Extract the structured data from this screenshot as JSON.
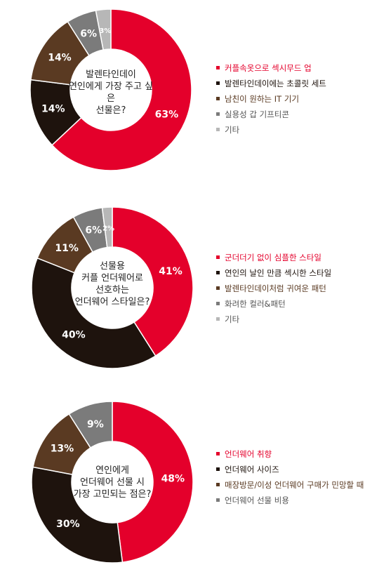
{
  "chart_data": [
    {
      "type": "pie",
      "title_lines": [
        "발렌타인데이",
        "연인에게 가장 주고 싶은",
        "선물은?"
      ],
      "slices": [
        {
          "label": "커플속옷으로 섹시무드 업",
          "value": 63,
          "value_label": "63%",
          "color": "#e4002b"
        },
        {
          "label": "발렌타인데이에는 초콜릿 세트",
          "value": 14,
          "value_label": "14%",
          "color": "#1e130d"
        },
        {
          "label": "남친이 원하는 IT 기기",
          "value": 14,
          "value_label": "14%",
          "color": "#5a3a22"
        },
        {
          "label": "실용성 갑 기프티콘",
          "value": 6,
          "value_label": "6%",
          "color": "#7b7b7b"
        },
        {
          "label": "기타",
          "value": 3,
          "value_label": "3%",
          "color": "#b7b7b7"
        }
      ]
    },
    {
      "type": "pie",
      "title_lines": [
        "선물용",
        "커플 언더웨어로",
        "선호하는",
        "언더웨어 스타일은?"
      ],
      "slices": [
        {
          "label": "군더더기 없이 심플한 스타일",
          "value": 41,
          "value_label": "41%",
          "color": "#e4002b"
        },
        {
          "label": "연인의 날인 만큼 섹시한 스타일",
          "value": 40,
          "value_label": "40%",
          "color": "#1e130d"
        },
        {
          "label": "발렌타인데이처럼 귀여운 패턴",
          "value": 11,
          "value_label": "11%",
          "color": "#5a3a22"
        },
        {
          "label": "화려한 컬러&패턴",
          "value": 6,
          "value_label": "6%",
          "color": "#7b7b7b"
        },
        {
          "label": "기타",
          "value": 2,
          "value_label": "2%",
          "color": "#b7b7b7"
        }
      ]
    },
    {
      "type": "pie",
      "title_lines": [
        "연인에게",
        "언더웨어 선물 시",
        "가장 고민되는 점은?"
      ],
      "slices": [
        {
          "label": "언더웨어 취향",
          "value": 48,
          "value_label": "48%",
          "color": "#e4002b"
        },
        {
          "label": "언더웨어 사이즈",
          "value": 30,
          "value_label": "30%",
          "color": "#1e130d"
        },
        {
          "label": "매장방문/이성 언더웨어 구매가 민망할 때",
          "value": 13,
          "value_label": "13%",
          "color": "#5a3a22"
        },
        {
          "label": "언더웨어 선물 비용",
          "value": 9,
          "value_label": "9%",
          "color": "#7b7b7b"
        }
      ]
    }
  ]
}
